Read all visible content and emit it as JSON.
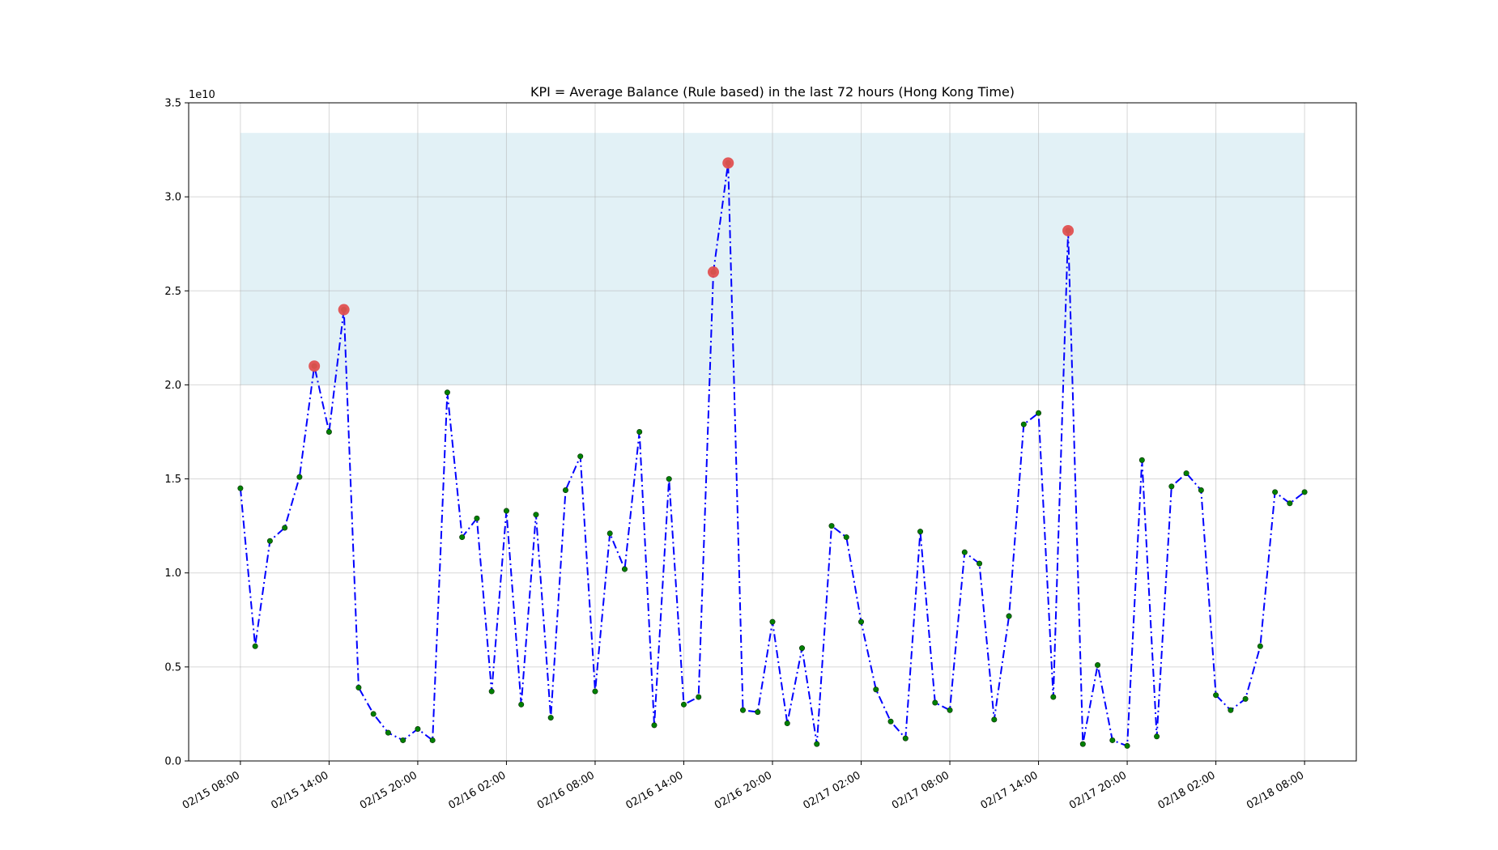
{
  "chart_data": {
    "type": "line",
    "title": "KPI = Average Balance (Rule based) in the last 72 hours (Hong Kong Time)",
    "xlabel": "",
    "ylabel": "",
    "y_exponent_label": "1e10",
    "ylim": [
      0,
      3.5
    ],
    "y_ticks": [
      0.0,
      0.5,
      1.0,
      1.5,
      2.0,
      2.5,
      3.0,
      3.5
    ],
    "y_tick_labels": [
      "0.0",
      "0.5",
      "1.0",
      "1.5",
      "2.0",
      "2.5",
      "3.0",
      "3.5"
    ],
    "x_range": [
      "02/15 04:30",
      "02/18 11:30"
    ],
    "x_ticks": [
      "02/15 08:00",
      "02/15 14:00",
      "02/15 20:00",
      "02/16 02:00",
      "02/16 08:00",
      "02/16 14:00",
      "02/16 20:00",
      "02/17 02:00",
      "02/17 08:00",
      "02/17 14:00",
      "02/17 20:00",
      "02/18 02:00",
      "02/18 08:00"
    ],
    "x_tick_labels": [
      "02/15 08:00",
      "02/15 14:00",
      "02/15 20:00",
      "02/16 02:00",
      "02/16 08:00",
      "02/16 14:00",
      "02/16 20:00",
      "02/17 02:00",
      "02/17 08:00",
      "02/17 14:00",
      "02/17 20:00",
      "02/18 02:00",
      "02/18 08:00"
    ],
    "grid": true,
    "band": {
      "y_low": 2.0,
      "y_high": 3.34,
      "x_start": "02/15 08:00",
      "x_end": "02/18 08:00",
      "color": "#add8e6"
    },
    "series": [
      {
        "line_color": "#0000ff",
        "line_style": "dash-dot",
        "marker_color": "#008000",
        "x": [
          "02/15 08:00",
          "02/15 09:00",
          "02/15 10:00",
          "02/15 11:00",
          "02/15 12:00",
          "02/15 13:00",
          "02/15 14:00",
          "02/15 15:00",
          "02/15 16:00",
          "02/15 17:00",
          "02/15 18:00",
          "02/15 19:00",
          "02/15 20:00",
          "02/15 21:00",
          "02/15 22:00",
          "02/15 23:00",
          "02/16 00:00",
          "02/16 01:00",
          "02/16 02:00",
          "02/16 03:00",
          "02/16 04:00",
          "02/16 05:00",
          "02/16 06:00",
          "02/16 07:00",
          "02/16 08:00",
          "02/16 09:00",
          "02/16 10:00",
          "02/16 11:00",
          "02/16 12:00",
          "02/16 13:00",
          "02/16 14:00",
          "02/16 15:00",
          "02/16 16:00",
          "02/16 17:00",
          "02/16 18:00",
          "02/16 19:00",
          "02/16 20:00",
          "02/16 21:00",
          "02/16 22:00",
          "02/16 23:00",
          "02/17 00:00",
          "02/17 01:00",
          "02/17 02:00",
          "02/17 03:00",
          "02/17 04:00",
          "02/17 05:00",
          "02/17 06:00",
          "02/17 07:00",
          "02/17 08:00",
          "02/17 09:00",
          "02/17 10:00",
          "02/17 11:00",
          "02/17 12:00",
          "02/17 13:00",
          "02/17 14:00",
          "02/17 15:00",
          "02/17 16:00",
          "02/17 17:00",
          "02/17 18:00",
          "02/17 19:00",
          "02/17 20:00",
          "02/17 21:00",
          "02/17 22:00",
          "02/17 23:00",
          "02/18 00:00",
          "02/18 01:00",
          "02/18 02:00",
          "02/18 03:00",
          "02/18 04:00",
          "02/18 05:00",
          "02/18 06:00",
          "02/18 07:00",
          "02/18 08:00"
        ],
        "y": [
          1.45,
          0.61,
          1.17,
          1.24,
          1.51,
          2.1,
          1.75,
          2.4,
          0.39,
          0.25,
          0.15,
          0.11,
          0.17,
          0.11,
          1.96,
          1.19,
          1.29,
          0.37,
          1.33,
          0.3,
          1.31,
          0.23,
          1.44,
          1.62,
          0.37,
          1.21,
          1.02,
          1.75,
          0.19,
          1.5,
          0.3,
          0.34,
          2.6,
          3.18,
          0.27,
          0.26,
          0.74,
          0.2,
          0.6,
          0.09,
          1.25,
          1.19,
          0.74,
          0.38,
          0.21,
          0.12,
          1.22,
          0.31,
          0.27,
          1.11,
          1.05,
          0.22,
          0.77,
          1.79,
          1.85,
          0.34,
          2.82,
          0.09,
          0.51,
          0.11,
          0.08,
          1.6,
          0.13,
          1.46,
          1.53,
          1.44,
          0.35,
          0.27,
          0.33,
          0.61,
          1.43,
          1.37,
          1.43
        ]
      }
    ],
    "anomalies": {
      "color": "#e05050",
      "x": [
        "02/15 13:00",
        "02/15 15:00",
        "02/16 16:00",
        "02/16 17:00",
        "02/17 16:00"
      ],
      "y": [
        2.1,
        2.4,
        2.6,
        3.18,
        2.82
      ]
    }
  }
}
